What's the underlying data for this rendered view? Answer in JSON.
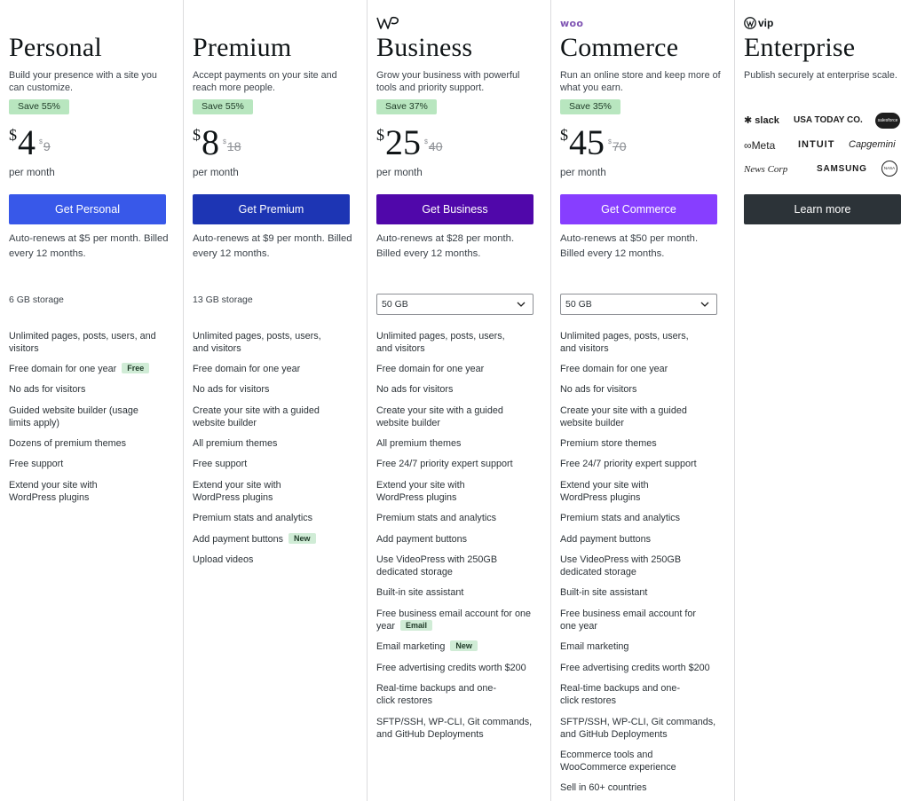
{
  "plans": [
    {
      "name": "Personal",
      "tagline": "Build your presence with a site you can customize.",
      "save": "Save 55%",
      "currency": "$",
      "price": "4",
      "old_currency": "$",
      "old_price": "9",
      "per": "per month",
      "cta": "Get Personal",
      "cta_color": "#3858e9",
      "renew": "Auto-renews at $5 per month. Billed every 12 months.",
      "storage": "6 GB storage",
      "features": [
        {
          "text": "Unlimited pages, posts, users, and visitors",
          "badge": ""
        },
        {
          "text": "Free domain for one year",
          "badge": "Free"
        },
        {
          "text": "No ads for visitors",
          "badge": ""
        },
        {
          "text": "Guided website builder (usage limits apply)",
          "badge": ""
        },
        {
          "text": "Dozens of premium themes",
          "badge": ""
        },
        {
          "text": "Free support",
          "badge": ""
        },
        {
          "text": "Extend your site with WordPress plugins",
          "badge": ""
        }
      ]
    },
    {
      "name": "Premium",
      "tagline": "Accept payments on your site and reach more people.",
      "save": "Save 55%",
      "currency": "$",
      "price": "8",
      "old_currency": "$",
      "old_price": "18",
      "per": "per month",
      "cta": "Get Premium",
      "cta_color": "#1d35b4",
      "renew": "Auto-renews at $9 per month. Billed every 12 months.",
      "storage": "13 GB storage",
      "features": [
        {
          "text": "Unlimited pages, posts, users, and visitors",
          "badge": ""
        },
        {
          "text": "Free domain for one year",
          "badge": ""
        },
        {
          "text": "No ads for visitors",
          "badge": ""
        },
        {
          "text": "Create your site with a guided website builder",
          "badge": ""
        },
        {
          "text": "All premium themes",
          "badge": ""
        },
        {
          "text": "Free support",
          "badge": ""
        },
        {
          "text": "Extend your site with WordPress plugins",
          "badge": ""
        },
        {
          "text": "Premium stats and analytics",
          "badge": ""
        },
        {
          "text": "Add payment buttons",
          "badge": "New"
        },
        {
          "text": "Upload videos",
          "badge": ""
        }
      ]
    },
    {
      "name": "Business",
      "tagline": "Grow your business with powerful tools and priority support.",
      "save": "Save 37%",
      "currency": "$",
      "price": "25",
      "old_currency": "$",
      "old_price": "40",
      "per": "per month",
      "cta": "Get Business",
      "cta_color": "#5007aa",
      "renew": "Auto-renews at $28 per month. Billed every 12 months.",
      "storage_select": "50 GB",
      "features": [
        {
          "text": "Unlimited pages, posts, users, and visitors",
          "badge": ""
        },
        {
          "text": "Free domain for one year",
          "badge": ""
        },
        {
          "text": "No ads for visitors",
          "badge": ""
        },
        {
          "text": "Create your site with a guided website builder",
          "badge": ""
        },
        {
          "text": "All premium themes",
          "badge": ""
        },
        {
          "text": "Free 24/7 priority expert support",
          "badge": ""
        },
        {
          "text": "Extend your site with WordPress plugins",
          "badge": ""
        },
        {
          "text": "Premium stats and analytics",
          "badge": ""
        },
        {
          "text": "Add payment buttons",
          "badge": ""
        },
        {
          "text": "Use VideoPress with 250GB dedicated storage",
          "badge": ""
        },
        {
          "text": "Built-in site assistant",
          "badge": ""
        },
        {
          "text": "Free business email account for one year",
          "badge": "Email"
        },
        {
          "text": "Email marketing",
          "badge": "New"
        },
        {
          "text": "Free advertising credits worth $200",
          "badge": ""
        },
        {
          "text": "Real-time backups and one-click restores",
          "badge": ""
        },
        {
          "text": "SFTP/SSH, WP-CLI, Git commands, and GitHub Deployments",
          "badge": ""
        }
      ]
    },
    {
      "name": "Commerce",
      "tagline": "Run an online store and keep more of what you earn.",
      "save": "Save 35%",
      "currency": "$",
      "price": "45",
      "old_currency": "$",
      "old_price": "70",
      "per": "per month",
      "cta": "Get Commerce",
      "cta_color": "#873eff",
      "renew": "Auto-renews at $50 per month. Billed every 12 months.",
      "storage_select": "50 GB",
      "features": [
        {
          "text": "Unlimited pages, posts, users, and visitors",
          "badge": ""
        },
        {
          "text": "Free domain for one year",
          "badge": ""
        },
        {
          "text": "No ads for visitors",
          "badge": ""
        },
        {
          "text": "Create your site with a guided website builder",
          "badge": ""
        },
        {
          "text": "Premium store themes",
          "badge": ""
        },
        {
          "text": "Free 24/7 priority expert support",
          "badge": ""
        },
        {
          "text": "Extend your site with WordPress plugins",
          "badge": ""
        },
        {
          "text": "Premium stats and analytics",
          "badge": ""
        },
        {
          "text": "Add payment buttons",
          "badge": ""
        },
        {
          "text": "Use VideoPress with 250GB dedicated storage",
          "badge": ""
        },
        {
          "text": "Built-in site assistant",
          "badge": ""
        },
        {
          "text": "Free business email account for one year",
          "badge": ""
        },
        {
          "text": "Email marketing",
          "badge": ""
        },
        {
          "text": "Free advertising credits worth $200",
          "badge": ""
        },
        {
          "text": "Real-time backups and one-click restores",
          "badge": ""
        },
        {
          "text": "SFTP/SSH, WP-CLI, Git commands, and GitHub Deployments",
          "badge": ""
        },
        {
          "text": "Ecommerce tools and WooCommerce experience",
          "badge": ""
        },
        {
          "text": "Sell in 60+ countries",
          "badge": ""
        }
      ]
    }
  ],
  "enterprise": {
    "logo": "vip",
    "name": "Enterprise",
    "tagline": "Publish securely at enterprise scale.",
    "cta": "Learn more",
    "cta_color": "#2c3338",
    "brands": [
      "slack",
      "USA TODAY CO.",
      "salesforce",
      "Meta",
      "INTUIT",
      "Capgemini",
      "News Corp",
      "SAMSUNG",
      "NASA"
    ]
  },
  "logos": {
    "business": "wp-logo-icon",
    "commerce": "woo"
  },
  "colors": {
    "badge_bg": "#b8e6bf",
    "divider": "#dcdcde"
  }
}
